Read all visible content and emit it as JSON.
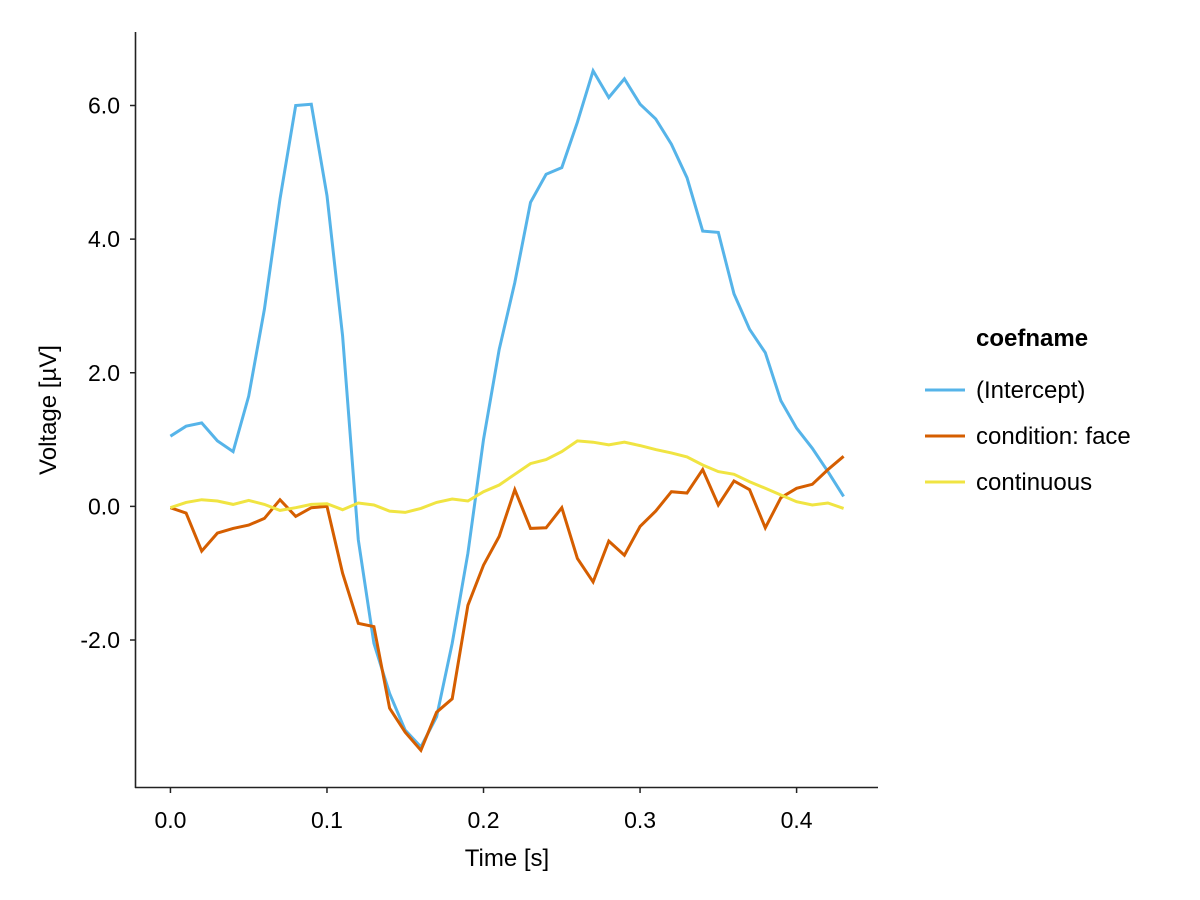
{
  "chart_data": {
    "type": "line",
    "xlabel": "Time [s]",
    "ylabel": "Voltage [µV]",
    "xlim": [
      -0.022,
      0.452
    ],
    "ylim": [
      -4.2,
      7.1
    ],
    "x_ticks": [
      0.0,
      0.1,
      0.2,
      0.3,
      0.4
    ],
    "x_tick_labels": [
      "0.0",
      "0.1",
      "0.2",
      "0.3",
      "0.4"
    ],
    "y_ticks": [
      -2.0,
      0.0,
      2.0,
      4.0,
      6.0
    ],
    "y_tick_labels": [
      "-2.0",
      "0.0",
      "2.0",
      "4.0",
      "6.0"
    ],
    "grid": false,
    "legend": {
      "title": "coefname",
      "position": "right"
    },
    "x": [
      0.0,
      0.01,
      0.02,
      0.03,
      0.04,
      0.05,
      0.06,
      0.07,
      0.08,
      0.09,
      0.1,
      0.11,
      0.12,
      0.13,
      0.14,
      0.15,
      0.16,
      0.17,
      0.18,
      0.19,
      0.2,
      0.21,
      0.22,
      0.23,
      0.24,
      0.25,
      0.26,
      0.27,
      0.28,
      0.29,
      0.3,
      0.31,
      0.32,
      0.33,
      0.34,
      0.35,
      0.36,
      0.37,
      0.38,
      0.39,
      0.4,
      0.41,
      0.42,
      0.43
    ],
    "series": [
      {
        "name": "(Intercept)",
        "color": "#56b4e9",
        "values": [
          1.05,
          1.2,
          1.25,
          0.98,
          0.82,
          1.65,
          2.95,
          4.6,
          6.0,
          6.02,
          4.65,
          2.55,
          -0.5,
          -2.05,
          -2.8,
          -3.35,
          -3.6,
          -3.15,
          -2.05,
          -0.7,
          1.0,
          2.35,
          3.35,
          4.55,
          4.97,
          5.07,
          5.75,
          6.52,
          6.12,
          6.4,
          6.02,
          5.8,
          5.42,
          4.92,
          4.12,
          4.1,
          3.18,
          2.65,
          2.3,
          1.58,
          1.17,
          0.87,
          0.52,
          0.15
        ]
      },
      {
        "name": "condition: face",
        "color": "#d55e00",
        "values": [
          -0.02,
          -0.1,
          -0.67,
          -0.4,
          -0.33,
          -0.28,
          -0.18,
          0.1,
          -0.15,
          -0.02,
          0.0,
          -1.0,
          -1.75,
          -1.8,
          -3.02,
          -3.38,
          -3.65,
          -3.08,
          -2.88,
          -1.48,
          -0.88,
          -0.45,
          0.25,
          -0.33,
          -0.32,
          -0.02,
          -0.78,
          -1.13,
          -0.52,
          -0.73,
          -0.3,
          -0.07,
          0.22,
          0.2,
          0.55,
          0.02,
          0.38,
          0.25,
          -0.32,
          0.13,
          0.27,
          0.33,
          0.55,
          0.75
        ]
      },
      {
        "name": "continuous",
        "color": "#f0e442",
        "values": [
          -0.02,
          0.06,
          0.1,
          0.08,
          0.03,
          0.09,
          0.03,
          -0.06,
          -0.02,
          0.03,
          0.04,
          -0.05,
          0.05,
          0.02,
          -0.07,
          -0.09,
          -0.03,
          0.06,
          0.11,
          0.08,
          0.22,
          0.32,
          0.48,
          0.64,
          0.7,
          0.82,
          0.98,
          0.96,
          0.92,
          0.96,
          0.91,
          0.85,
          0.8,
          0.74,
          0.62,
          0.52,
          0.48,
          0.37,
          0.27,
          0.17,
          0.07,
          0.02,
          0.05,
          -0.03
        ]
      }
    ]
  }
}
